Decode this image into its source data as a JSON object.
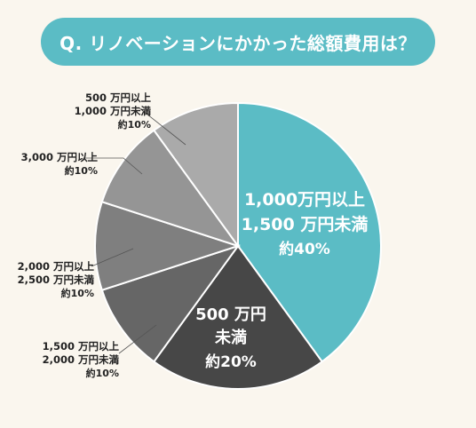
{
  "title": "Q. リノベーションにかかった総額費用は？",
  "chart_data": {
    "type": "pie",
    "title": "Q. リノベーションにかかった総額費用は？",
    "slices": [
      {
        "label": "1,000 万円以上 1,500 万円未満",
        "value": 40,
        "value_label": "約40%",
        "color": "#5bbcc5"
      },
      {
        "label": "500 万円 未満",
        "value": 20,
        "value_label": "約20%",
        "color": "#474747"
      },
      {
        "label": "1,500 万円以上 2,000 万円未満",
        "value": 10,
        "value_label": "約10%",
        "color": "#666666"
      },
      {
        "label": "2,000 万円以上 2,500 万円未満",
        "value": 10,
        "value_label": "約10%",
        "color": "#7f7f7f"
      },
      {
        "label": "3,000 万円以上",
        "value": 10,
        "value_label": "約10%",
        "color": "#959595"
      },
      {
        "label": "500 万円以上 1,000 万円未満",
        "value": 10,
        "value_label": "約10%",
        "color": "#aaaaaa"
      }
    ]
  },
  "labels": {
    "s40": {
      "line1": "1,000万円以上",
      "line2": "1,500 万円未満",
      "pct": "約40%"
    },
    "s20": {
      "line1": "500 万円",
      "line2": "未満",
      "pct": "約20%"
    },
    "s1500": {
      "line1": "1,500 万円以上",
      "line2": "2,000 万円未満",
      "pct": "約10%"
    },
    "s2000": {
      "line1": "2,000 万円以上",
      "line2": "2,500 万円未満",
      "pct": "約10%"
    },
    "s3000": {
      "line1": "3,000 万円以上",
      "pct": "約10%"
    },
    "s500": {
      "line1": "500 万円以上",
      "line2": "1,000 万円未満",
      "pct": "約10%"
    }
  }
}
